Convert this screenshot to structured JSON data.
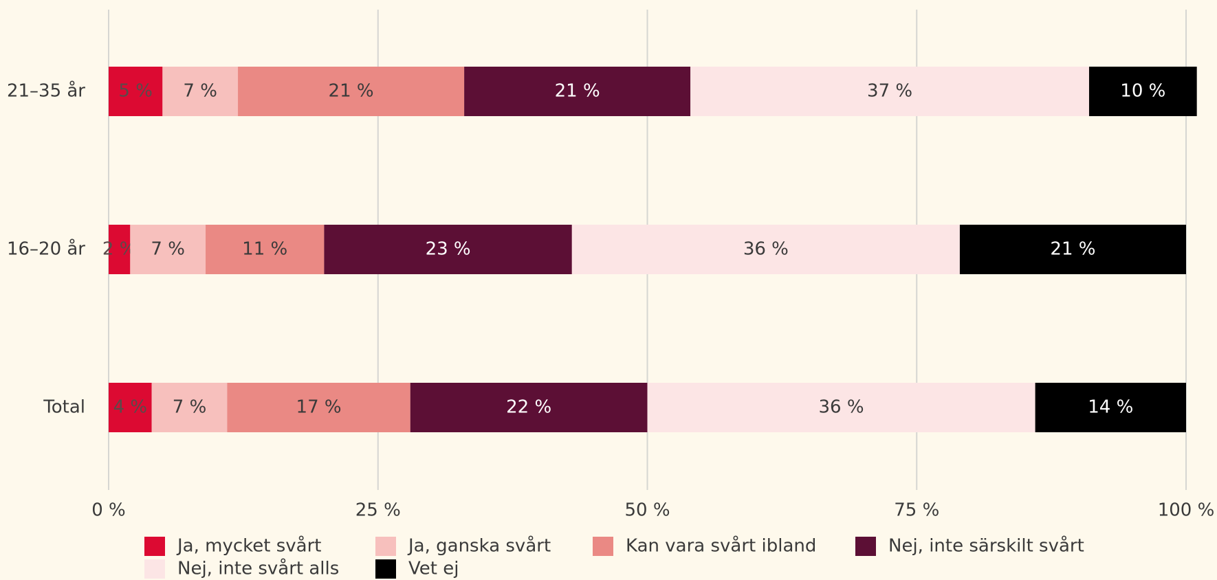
{
  "chart_data": {
    "type": "stacked-bar-horizontal",
    "categories": [
      "21–35 år",
      "16–20 år",
      "Total"
    ],
    "series": [
      {
        "name": "Ja, mycket svårt",
        "color": "#dc0a32",
        "label_color": "#5a4a4a",
        "values": [
          5,
          2,
          4
        ],
        "value_labels": [
          "5 %",
          "2 %",
          "4 %"
        ]
      },
      {
        "name": "Ja, ganska svårt",
        "color": "#f7c0bd",
        "label_color": "#3a3a3a",
        "values": [
          7,
          7,
          7
        ],
        "value_labels": [
          "7 %",
          "7 %",
          "7 %"
        ]
      },
      {
        "name": "Kan vara svårt ibland",
        "color": "#ea8984",
        "label_color": "#3a3a3a",
        "values": [
          21,
          11,
          17
        ],
        "value_labels": [
          "21 %",
          "11 %",
          "17 %"
        ]
      },
      {
        "name": "Nej, inte särskilt svårt",
        "color": "#5c0f35",
        "label_color": "#ffffff",
        "values": [
          21,
          23,
          22
        ],
        "value_labels": [
          "21 %",
          "23 %",
          "22 %"
        ]
      },
      {
        "name": "Nej, inte svårt alls",
        "color": "#fce5e5",
        "label_color": "#3a3a3a",
        "values": [
          37,
          36,
          36
        ],
        "value_labels": [
          "37 %",
          "36 %",
          "36 %"
        ]
      },
      {
        "name": "Vet ej",
        "color": "#000000",
        "label_color": "#ffffff",
        "values": [
          10,
          21,
          14
        ],
        "value_labels": [
          "10 %",
          "21 %",
          "14 %"
        ]
      }
    ],
    "xlim": [
      0,
      100
    ],
    "xticks": [
      {
        "value": 0,
        "label": "0 %"
      },
      {
        "value": 25,
        "label": "25 %"
      },
      {
        "value": 50,
        "label": "50 %"
      },
      {
        "value": 75,
        "label": "75 %"
      },
      {
        "value": 100,
        "label": "100 %"
      }
    ],
    "grid": true,
    "legend": "bottom"
  }
}
